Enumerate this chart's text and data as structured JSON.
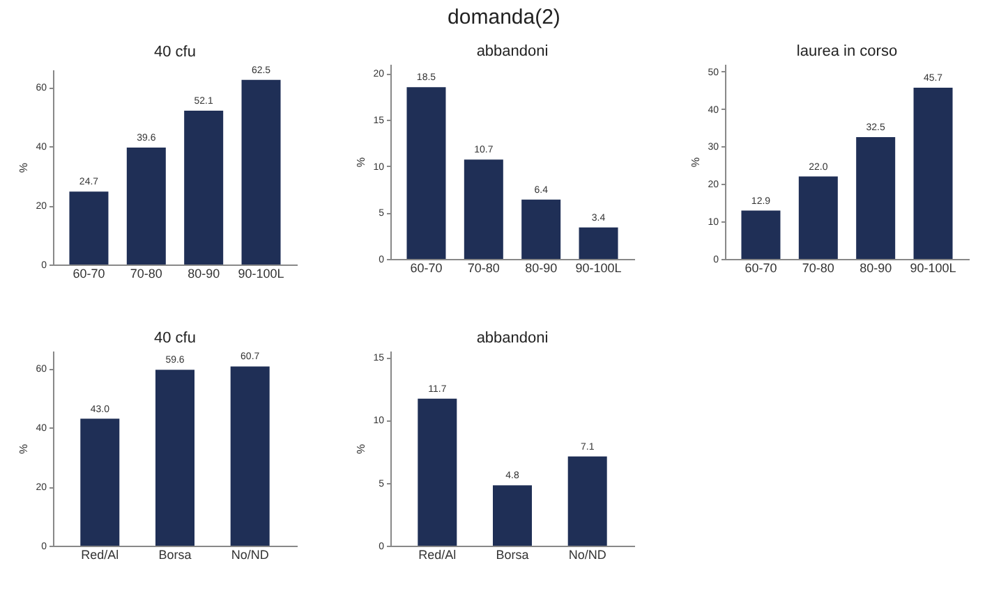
{
  "chart_data": [
    {
      "type": "bar",
      "title": "40 cfu",
      "ylabel": "%",
      "annotations": [
        "domanda(2)"
      ],
      "categories": [
        "60-70",
        "70-80",
        "80-90",
        "90-100L"
      ],
      "values": [
        24.7,
        39.6,
        52.1,
        62.5
      ],
      "value_labels": [
        "24.7",
        "39.6",
        "52.1",
        "62.5"
      ],
      "color": "#1f2f56",
      "ylim": [
        0,
        66
      ],
      "yticks": [
        0,
        20,
        40,
        60
      ],
      "grid": false
    },
    {
      "type": "bar",
      "title": "abbandoni",
      "ylabel": "%",
      "categories": [
        "60-70",
        "70-80",
        "80-90",
        "90-100L"
      ],
      "values": [
        18.5,
        10.7,
        6.4,
        3.4
      ],
      "value_labels": [
        "18.5",
        "10.7",
        "6.4",
        "3.4"
      ],
      "color": "#1f2f56",
      "ylim": [
        0,
        21
      ],
      "yticks": [
        0,
        5,
        10,
        15,
        20
      ],
      "grid": false
    },
    {
      "type": "bar",
      "title": "laurea in corso",
      "ylabel": "%",
      "categories": [
        "60-70",
        "70-80",
        "80-90",
        "90-100L"
      ],
      "values": [
        12.9,
        22.0,
        32.5,
        45.7
      ],
      "value_labels": [
        "12.9",
        "22.0",
        "32.5",
        "45.7"
      ],
      "color": "#1f2f56",
      "ylim": [
        0,
        52
      ],
      "yticks": [
        0,
        10,
        20,
        30,
        40,
        50
      ],
      "grid": false
    },
    {
      "type": "bar",
      "title": "40 cfu",
      "ylabel": "%",
      "categories": [
        "Red/Al",
        "Borsa",
        "No/ND"
      ],
      "values": [
        43.0,
        59.6,
        60.7
      ],
      "value_labels": [
        "43.0",
        "59.6",
        "60.7"
      ],
      "color": "#1f2f56",
      "ylim": [
        0,
        66
      ],
      "yticks": [
        0,
        20,
        40,
        60
      ],
      "grid": false
    },
    {
      "type": "bar",
      "title": "abbandoni",
      "ylabel": "%",
      "categories": [
        "Red/Al",
        "Borsa",
        "No/ND"
      ],
      "values": [
        11.7,
        4.8,
        7.1
      ],
      "value_labels": [
        "11.7",
        "4.8",
        "7.1"
      ],
      "color": "#1f2f56",
      "ylim": [
        0,
        15.5
      ],
      "yticks": [
        0,
        5,
        10,
        15
      ],
      "grid": false
    }
  ]
}
